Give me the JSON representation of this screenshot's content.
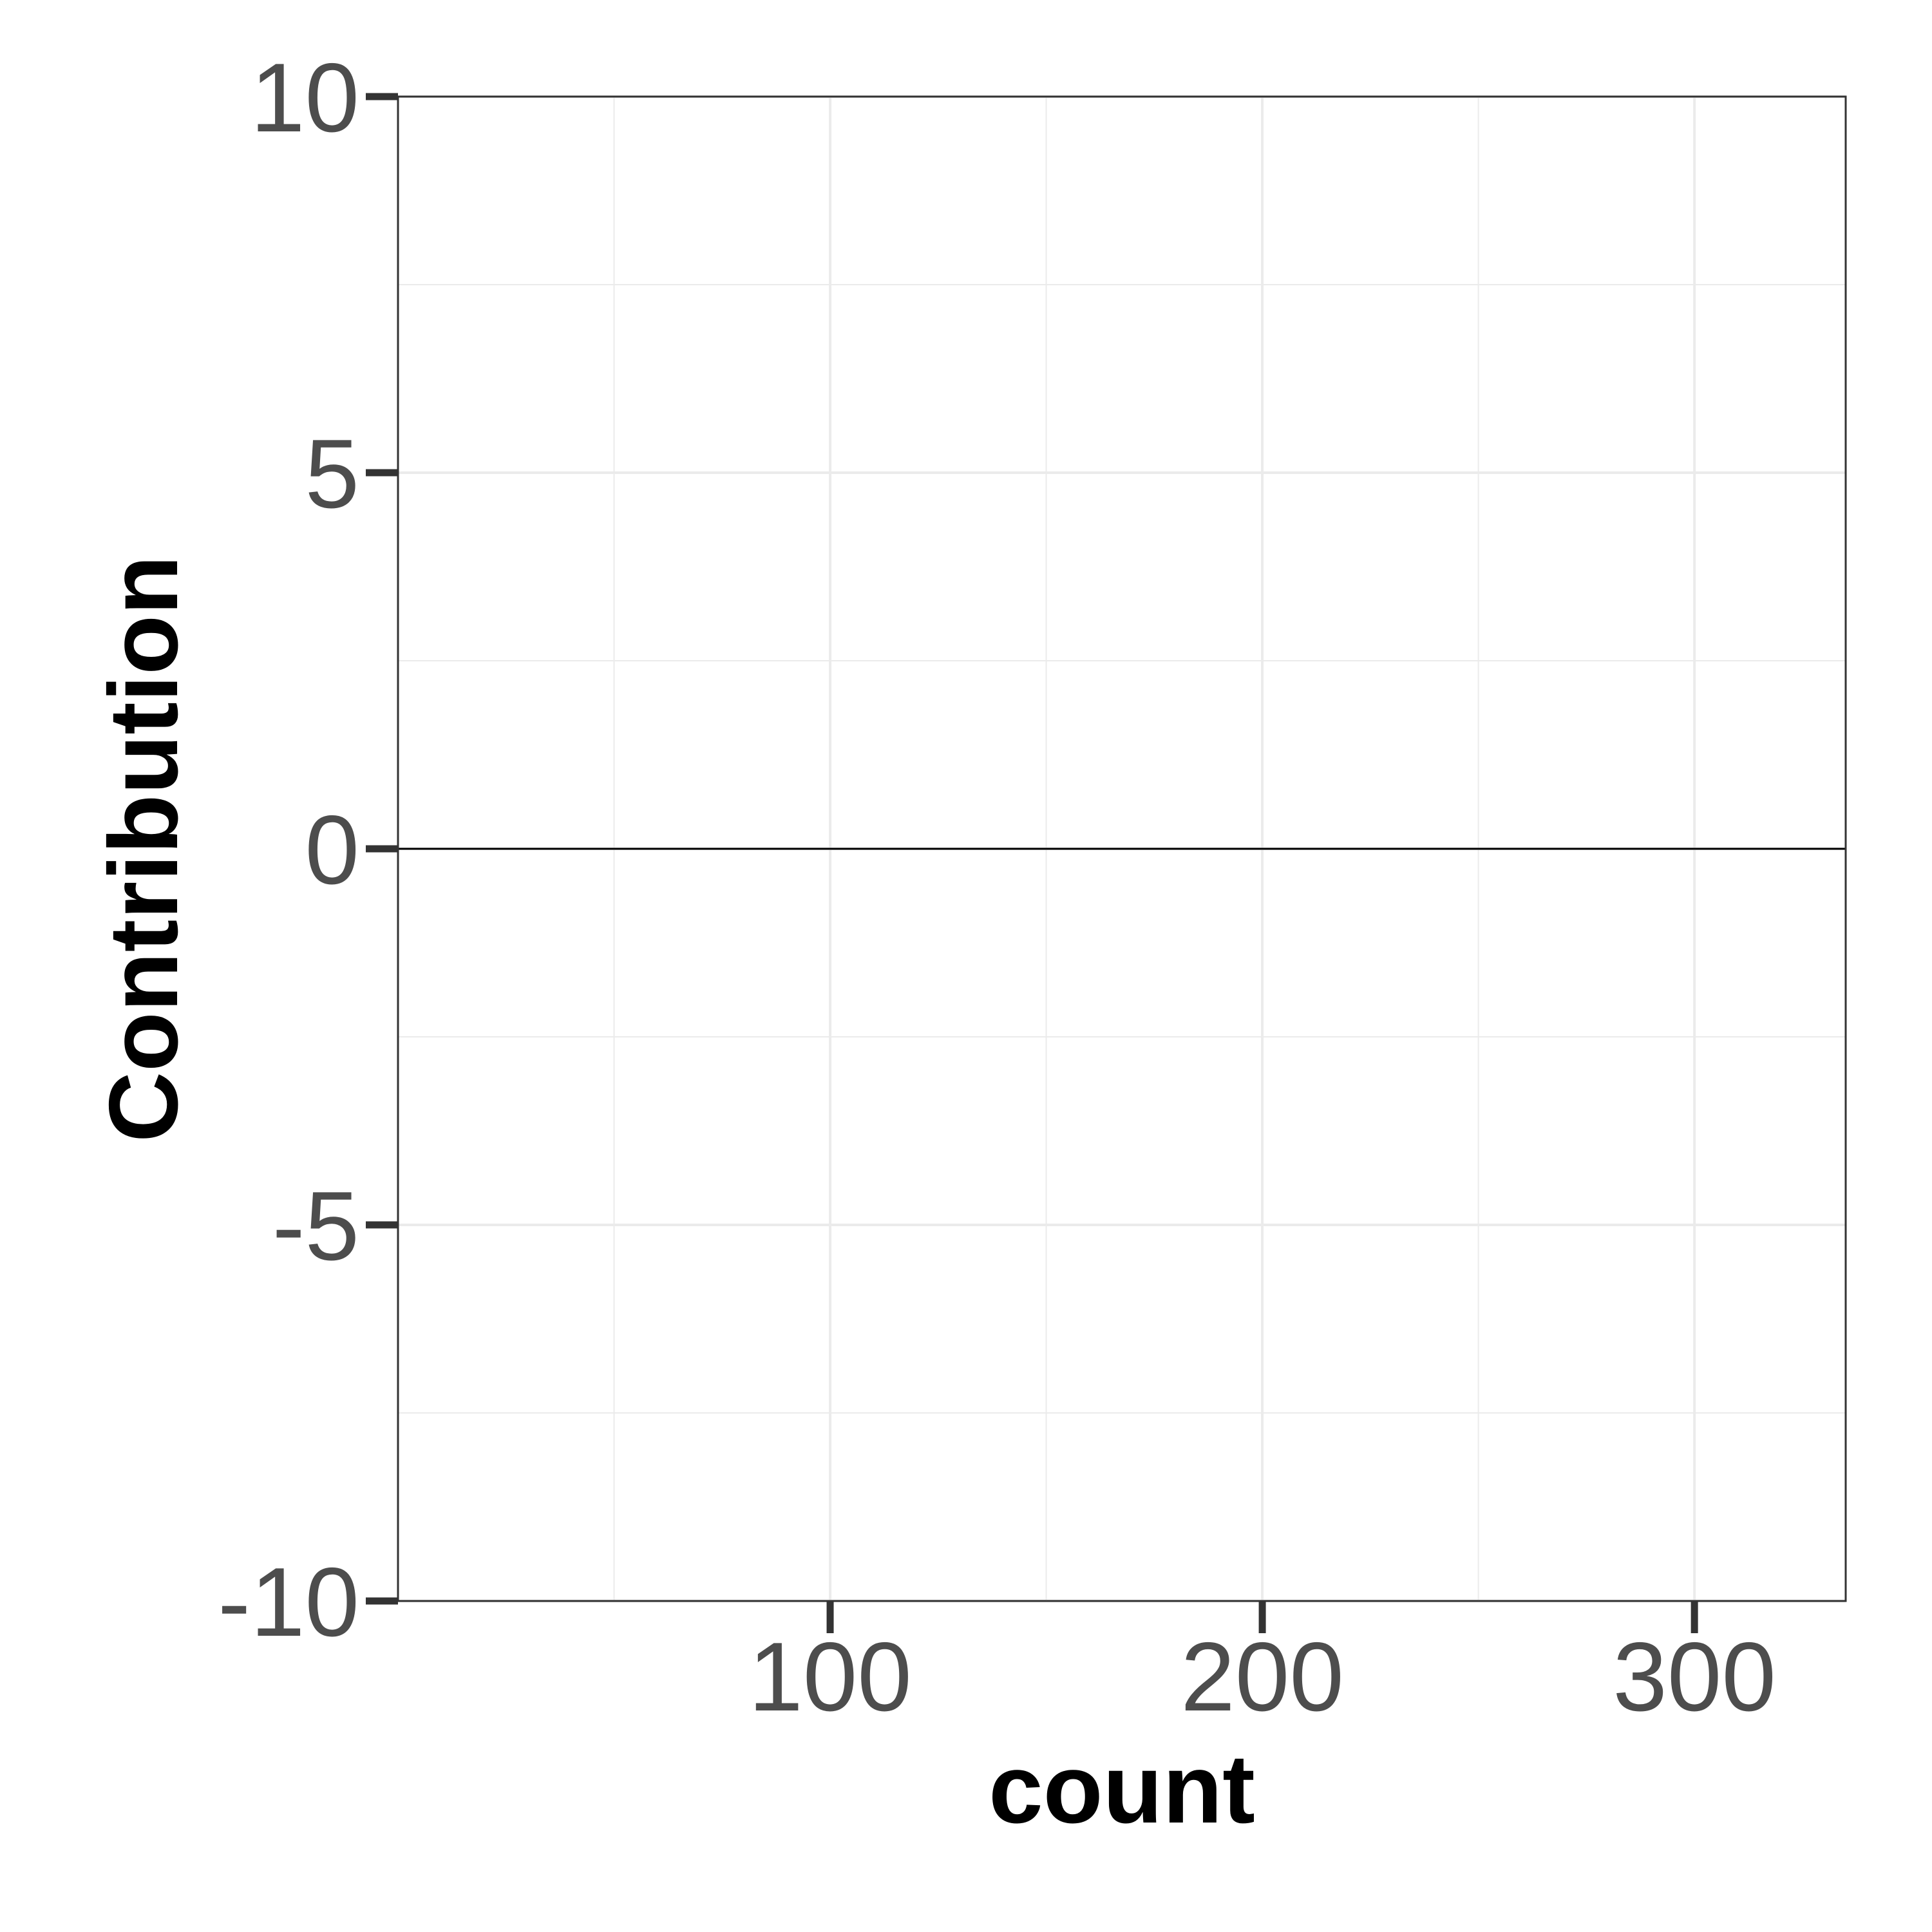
{
  "chart_data": {
    "type": "line",
    "title": "",
    "xlabel": "count",
    "ylabel": "Contribution",
    "xlim": [
      0,
      335
    ],
    "ylim": [
      -10,
      10
    ],
    "x_ticks": [
      100,
      200,
      300
    ],
    "x_minor_ticks": [
      50,
      150,
      250
    ],
    "y_ticks": [
      -10,
      -5,
      0,
      5,
      10
    ],
    "y_minor_ticks": [
      -7.5,
      -2.5,
      2.5,
      7.5
    ],
    "reference_line": {
      "y": 0
    },
    "series": [],
    "grid": true,
    "colors": {
      "grid": "#ebebeb",
      "border": "#333333",
      "reference_line": "#000000",
      "tick_label": "#4d4d4d"
    }
  }
}
